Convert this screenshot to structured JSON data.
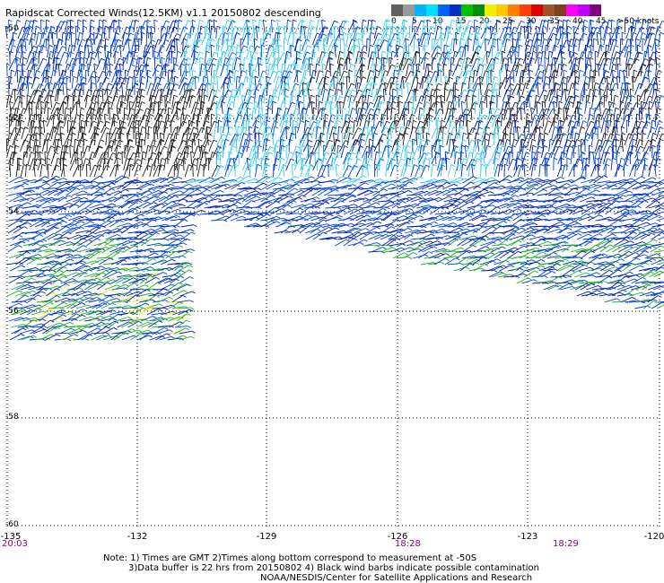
{
  "title": "Rapidscat Corrected Winds(12.5KM) v1.1 20150802 descending",
  "colorbar": {
    "colors": [
      "#606060",
      "#9a9a9a",
      "#00b4ff",
      "#00e0ff",
      "#0060ff",
      "#0030c0",
      "#00c000",
      "#009000",
      "#f0f000",
      "#ffc800",
      "#ff8000",
      "#ff4000",
      "#e00000",
      "#a0522d",
      "#804020",
      "#ff00ff",
      "#c000ff",
      "#800080"
    ],
    "labels": [
      "0",
      "5",
      "10",
      "15",
      "20",
      "25",
      "30",
      "35",
      "40",
      "45",
      ">50 knots"
    ]
  },
  "latitudes": [
    "-50",
    "-52",
    "-54",
    "-56",
    "-58",
    "-60"
  ],
  "longitudes": [
    "-135",
    "-132",
    "-129",
    "-126",
    "-123",
    "-120"
  ],
  "times": [
    "20:03",
    "18:28",
    "18:29"
  ],
  "notes": {
    "line1": "Note: 1) Times are GMT 2)Times along bottom correspond to measurement at -50S",
    "line2": "3)Data buffer is 22 hrs from 20150802 4) Black wind barbs indicate possible contamination",
    "line3": "NOAA/NESDIS/Center for Satellite Applications and Research"
  },
  "wind_color_legend": {
    "black": "possible contamination",
    "cyan": "5-10 knots",
    "blue": "10-15 knots",
    "green": "15-20 knots",
    "yellow": "20-25 knots"
  }
}
